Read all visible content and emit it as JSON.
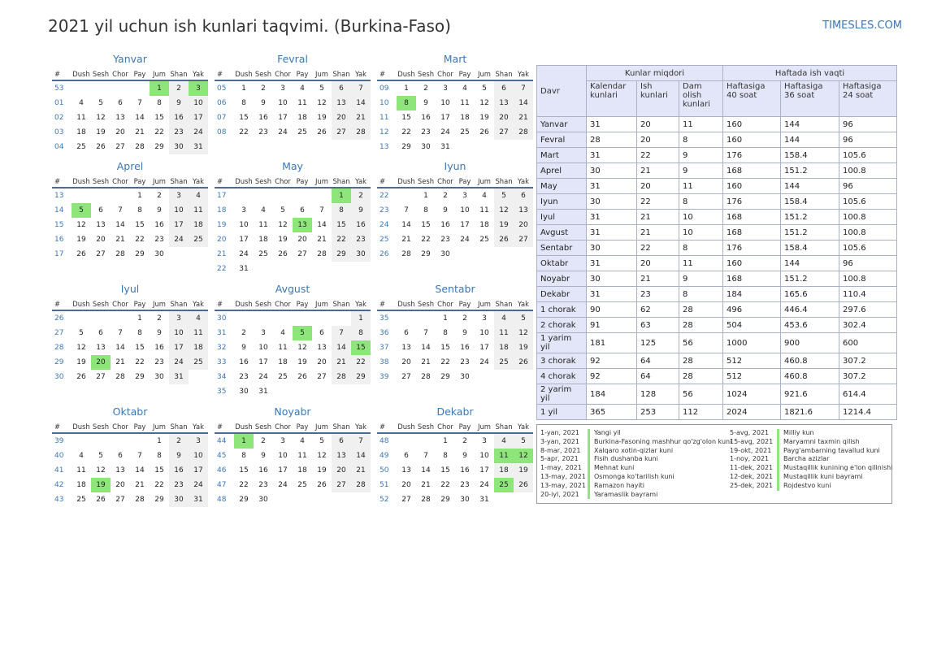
{
  "header": {
    "title": "2021 yil uchun ish kunlari taqvimi. (Burkina-Faso)",
    "site": "TIMESLES.COM"
  },
  "calendar": {
    "weekday_headers": [
      "#",
      "Dush",
      "Sesh",
      "Chor",
      "Pay",
      "Jum",
      "Shan",
      "Yak"
    ],
    "months": [
      {
        "name": "Yanvar",
        "weeks": [
          [
            "53",
            "",
            "",
            "",
            "",
            "1",
            "2",
            "3"
          ],
          [
            "01",
            "4",
            "5",
            "6",
            "7",
            "8",
            "9",
            "10"
          ],
          [
            "02",
            "11",
            "12",
            "13",
            "14",
            "15",
            "16",
            "17"
          ],
          [
            "03",
            "18",
            "19",
            "20",
            "21",
            "22",
            "23",
            "24"
          ],
          [
            "04",
            "25",
            "26",
            "27",
            "28",
            "29",
            "30",
            "31"
          ]
        ],
        "holidays": [
          "1",
          "3"
        ]
      },
      {
        "name": "Fevral",
        "weeks": [
          [
            "05",
            "1",
            "2",
            "3",
            "4",
            "5",
            "6",
            "7"
          ],
          [
            "06",
            "8",
            "9",
            "10",
            "11",
            "12",
            "13",
            "14"
          ],
          [
            "07",
            "15",
            "16",
            "17",
            "18",
            "19",
            "20",
            "21"
          ],
          [
            "08",
            "22",
            "23",
            "24",
            "25",
            "26",
            "27",
            "28"
          ]
        ],
        "holidays": []
      },
      {
        "name": "Mart",
        "weeks": [
          [
            "09",
            "1",
            "2",
            "3",
            "4",
            "5",
            "6",
            "7"
          ],
          [
            "10",
            "8",
            "9",
            "10",
            "11",
            "12",
            "13",
            "14"
          ],
          [
            "11",
            "15",
            "16",
            "17",
            "18",
            "19",
            "20",
            "21"
          ],
          [
            "12",
            "22",
            "23",
            "24",
            "25",
            "26",
            "27",
            "28"
          ],
          [
            "13",
            "29",
            "30",
            "31",
            "",
            "",
            "",
            ""
          ]
        ],
        "holidays": [
          "8"
        ]
      },
      {
        "name": "Aprel",
        "weeks": [
          [
            "13",
            "",
            "",
            "",
            "1",
            "2",
            "3",
            "4"
          ],
          [
            "14",
            "5",
            "6",
            "7",
            "8",
            "9",
            "10",
            "11"
          ],
          [
            "15",
            "12",
            "13",
            "14",
            "15",
            "16",
            "17",
            "18"
          ],
          [
            "16",
            "19",
            "20",
            "21",
            "22",
            "23",
            "24",
            "25"
          ],
          [
            "17",
            "26",
            "27",
            "28",
            "29",
            "30",
            "",
            ""
          ]
        ],
        "holidays": [
          "5"
        ]
      },
      {
        "name": "May",
        "weeks": [
          [
            "17",
            "",
            "",
            "",
            "",
            "",
            "1",
            "2"
          ],
          [
            "18",
            "3",
            "4",
            "5",
            "6",
            "7",
            "8",
            "9"
          ],
          [
            "19",
            "10",
            "11",
            "12",
            "13",
            "14",
            "15",
            "16"
          ],
          [
            "20",
            "17",
            "18",
            "19",
            "20",
            "21",
            "22",
            "23"
          ],
          [
            "21",
            "24",
            "25",
            "26",
            "27",
            "28",
            "29",
            "30"
          ],
          [
            "22",
            "31",
            "",
            "",
            "",
            "",
            "",
            ""
          ]
        ],
        "holidays": [
          "1",
          "13"
        ]
      },
      {
        "name": "Iyun",
        "weeks": [
          [
            "22",
            "",
            "1",
            "2",
            "3",
            "4",
            "5",
            "6"
          ],
          [
            "23",
            "7",
            "8",
            "9",
            "10",
            "11",
            "12",
            "13"
          ],
          [
            "24",
            "14",
            "15",
            "16",
            "17",
            "18",
            "19",
            "20"
          ],
          [
            "25",
            "21",
            "22",
            "23",
            "24",
            "25",
            "26",
            "27"
          ],
          [
            "26",
            "28",
            "29",
            "30",
            "",
            "",
            "",
            ""
          ]
        ],
        "holidays": []
      },
      {
        "name": "Iyul",
        "weeks": [
          [
            "26",
            "",
            "",
            "",
            "1",
            "2",
            "3",
            "4"
          ],
          [
            "27",
            "5",
            "6",
            "7",
            "8",
            "9",
            "10",
            "11"
          ],
          [
            "28",
            "12",
            "13",
            "14",
            "15",
            "16",
            "17",
            "18"
          ],
          [
            "29",
            "19",
            "20",
            "21",
            "22",
            "23",
            "24",
            "25"
          ],
          [
            "30",
            "26",
            "27",
            "28",
            "29",
            "30",
            "31",
            ""
          ]
        ],
        "holidays": [
          "20"
        ]
      },
      {
        "name": "Avgust",
        "weeks": [
          [
            "30",
            "",
            "",
            "",
            "",
            "",
            "",
            "1"
          ],
          [
            "31",
            "2",
            "3",
            "4",
            "5",
            "6",
            "7",
            "8"
          ],
          [
            "32",
            "9",
            "10",
            "11",
            "12",
            "13",
            "14",
            "15"
          ],
          [
            "33",
            "16",
            "17",
            "18",
            "19",
            "20",
            "21",
            "22"
          ],
          [
            "34",
            "23",
            "24",
            "25",
            "26",
            "27",
            "28",
            "29"
          ],
          [
            "35",
            "30",
            "31",
            "",
            "",
            "",
            "",
            ""
          ]
        ],
        "holidays": [
          "5",
          "15"
        ]
      },
      {
        "name": "Sentabr",
        "weeks": [
          [
            "35",
            "",
            "",
            "1",
            "2",
            "3",
            "4",
            "5"
          ],
          [
            "36",
            "6",
            "7",
            "8",
            "9",
            "10",
            "11",
            "12"
          ],
          [
            "37",
            "13",
            "14",
            "15",
            "16",
            "17",
            "18",
            "19"
          ],
          [
            "38",
            "20",
            "21",
            "22",
            "23",
            "24",
            "25",
            "26"
          ],
          [
            "39",
            "27",
            "28",
            "29",
            "30",
            "",
            "",
            ""
          ]
        ],
        "holidays": []
      },
      {
        "name": "Oktabr",
        "weeks": [
          [
            "39",
            "",
            "",
            "",
            "",
            "1",
            "2",
            "3"
          ],
          [
            "40",
            "4",
            "5",
            "6",
            "7",
            "8",
            "9",
            "10"
          ],
          [
            "41",
            "11",
            "12",
            "13",
            "14",
            "15",
            "16",
            "17"
          ],
          [
            "42",
            "18",
            "19",
            "20",
            "21",
            "22",
            "23",
            "24"
          ],
          [
            "43",
            "25",
            "26",
            "27",
            "28",
            "29",
            "30",
            "31"
          ]
        ],
        "holidays": [
          "19"
        ]
      },
      {
        "name": "Noyabr",
        "weeks": [
          [
            "44",
            "1",
            "2",
            "3",
            "4",
            "5",
            "6",
            "7"
          ],
          [
            "45",
            "8",
            "9",
            "10",
            "11",
            "12",
            "13",
            "14"
          ],
          [
            "46",
            "15",
            "16",
            "17",
            "18",
            "19",
            "20",
            "21"
          ],
          [
            "47",
            "22",
            "23",
            "24",
            "25",
            "26",
            "27",
            "28"
          ],
          [
            "48",
            "29",
            "30",
            "",
            "",
            "",
            "",
            ""
          ]
        ],
        "holidays": [
          "1"
        ]
      },
      {
        "name": "Dekabr",
        "weeks": [
          [
            "48",
            "",
            "",
            "1",
            "2",
            "3",
            "4",
            "5"
          ],
          [
            "49",
            "6",
            "7",
            "8",
            "9",
            "10",
            "11",
            "12"
          ],
          [
            "50",
            "13",
            "14",
            "15",
            "16",
            "17",
            "18",
            "19"
          ],
          [
            "51",
            "20",
            "21",
            "22",
            "23",
            "24",
            "25",
            "26"
          ],
          [
            "52",
            "27",
            "28",
            "29",
            "30",
            "31",
            "",
            ""
          ]
        ],
        "holidays": [
          "11",
          "12",
          "25"
        ]
      }
    ]
  },
  "stats": {
    "group_days": "Kunlar miqdori",
    "group_hours": "Haftada ish vaqti",
    "col_period": "Davr",
    "col_calendar": "Kalendar kunlari",
    "col_work": "Ish kunlari",
    "col_rest": "Dam olish kunlari",
    "col_40": "Haftasiga 40 soat",
    "col_36": "Haftasiga 36 soat",
    "col_24": "Haftasiga 24 soat",
    "rows": [
      [
        "Yanvar",
        "31",
        "20",
        "11",
        "160",
        "144",
        "96"
      ],
      [
        "Fevral",
        "28",
        "20",
        "8",
        "160",
        "144",
        "96"
      ],
      [
        "Mart",
        "31",
        "22",
        "9",
        "176",
        "158.4",
        "105.6"
      ],
      [
        "Aprel",
        "30",
        "21",
        "9",
        "168",
        "151.2",
        "100.8"
      ],
      [
        "May",
        "31",
        "20",
        "11",
        "160",
        "144",
        "96"
      ],
      [
        "Iyun",
        "30",
        "22",
        "8",
        "176",
        "158.4",
        "105.6"
      ],
      [
        "Iyul",
        "31",
        "21",
        "10",
        "168",
        "151.2",
        "100.8"
      ],
      [
        "Avgust",
        "31",
        "21",
        "10",
        "168",
        "151.2",
        "100.8"
      ],
      [
        "Sentabr",
        "30",
        "22",
        "8",
        "176",
        "158.4",
        "105.6"
      ],
      [
        "Oktabr",
        "31",
        "20",
        "11",
        "160",
        "144",
        "96"
      ],
      [
        "Noyabr",
        "30",
        "21",
        "9",
        "168",
        "151.2",
        "100.8"
      ],
      [
        "Dekabr",
        "31",
        "23",
        "8",
        "184",
        "165.6",
        "110.4"
      ],
      [
        "1 chorak",
        "90",
        "62",
        "28",
        "496",
        "446.4",
        "297.6"
      ],
      [
        "2 chorak",
        "91",
        "63",
        "28",
        "504",
        "453.6",
        "302.4"
      ],
      [
        "1 yarim yil",
        "181",
        "125",
        "56",
        "1000",
        "900",
        "600"
      ],
      [
        "3 chorak",
        "92",
        "64",
        "28",
        "512",
        "460.8",
        "307.2"
      ],
      [
        "4 chorak",
        "92",
        "64",
        "28",
        "512",
        "460.8",
        "307.2"
      ],
      [
        "2 yarim yil",
        "184",
        "128",
        "56",
        "1024",
        "921.6",
        "614.4"
      ],
      [
        "1 yil",
        "365",
        "253",
        "112",
        "2024",
        "1821.6",
        "1214.4"
      ]
    ]
  },
  "holidays": {
    "left": [
      {
        "date": "1-yan, 2021",
        "name": "Yangi yil"
      },
      {
        "date": "3-yan, 2021",
        "name": "Burkina-Fasoning mashhur qo'zg'olon kuni"
      },
      {
        "date": "8-mar, 2021",
        "name": "Xalqaro xotin-qizlar kuni"
      },
      {
        "date": "5-apr, 2021",
        "name": "Fisih dushanba kuni"
      },
      {
        "date": "1-may, 2021",
        "name": "Mehnat kuni"
      },
      {
        "date": "13-may, 2021",
        "name": "Osmonga ko'tarilish kuni"
      },
      {
        "date": "13-may, 2021",
        "name": "Ramazon hayiti"
      },
      {
        "date": "20-iyl, 2021",
        "name": "Yaramaslik bayrami"
      }
    ],
    "right": [
      {
        "date": "5-avg, 2021",
        "name": "Milliy kun"
      },
      {
        "date": "15-avg, 2021",
        "name": "Maryamni taxmin qilish"
      },
      {
        "date": "19-okt, 2021",
        "name": "Payg'ambarning tavallud kuni"
      },
      {
        "date": "1-noy, 2021",
        "name": "Barcha azizlar"
      },
      {
        "date": "11-dek, 2021",
        "name": "Mustaqillik kunining e'lon qilinishi"
      },
      {
        "date": "12-dek, 2021",
        "name": "Mustaqillik kuni bayrami"
      },
      {
        "date": "25-dek, 2021",
        "name": "Rojdestvo kuni"
      }
    ]
  },
  "colors": {
    "accent": "#3a78b8",
    "holiday": "#8ee67a",
    "weekend": "#f0f0f0",
    "table_header": "#e2e6f8"
  }
}
